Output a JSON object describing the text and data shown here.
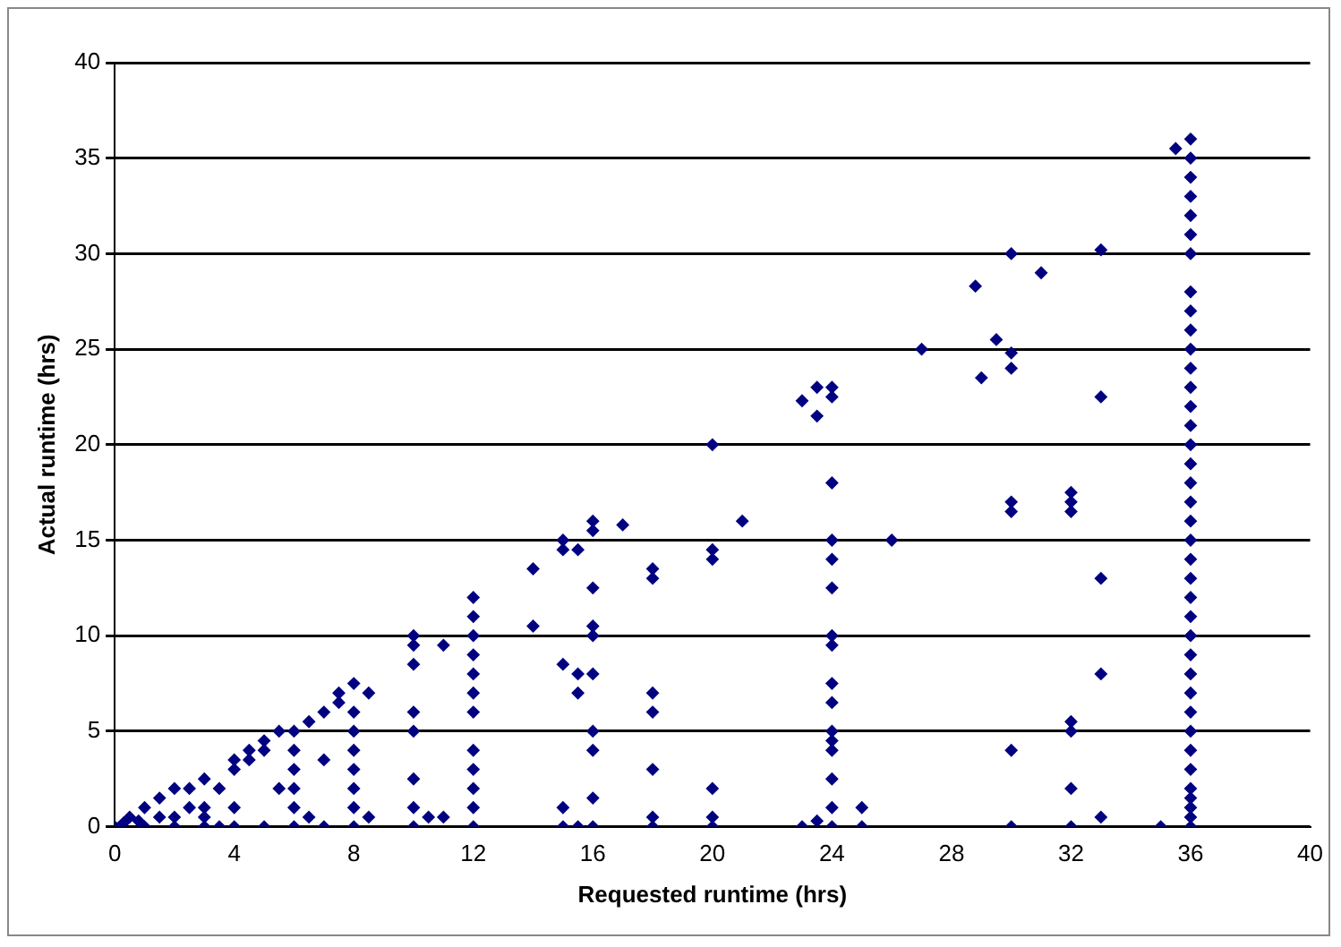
{
  "chart_data": {
    "type": "scatter",
    "xlabel": "Requested runtime (hrs)",
    "ylabel": "Actual runtime (hrs)",
    "xlim": [
      0,
      40
    ],
    "xticks": [
      0,
      4,
      8,
      12,
      16,
      20,
      24,
      28,
      32,
      36,
      40
    ],
    "ylim": [
      0,
      40
    ],
    "yticks": [
      0,
      5,
      10,
      15,
      20,
      25,
      30,
      35,
      40
    ],
    "grid": "y",
    "legend": false,
    "marker": "diamond",
    "series": [
      {
        "color": "#000080",
        "x": [
          0,
          0.3,
          0.5,
          0.8,
          1,
          1,
          1.5,
          1.5,
          2,
          2,
          2,
          2.5,
          2.5,
          3,
          3,
          3,
          3,
          3.5,
          3.5,
          4,
          4,
          4,
          4,
          4.5,
          4.5,
          5,
          5,
          5,
          5.5,
          5.5,
          6,
          6,
          6,
          6,
          6,
          6,
          6.5,
          6.5,
          7,
          7,
          7,
          7.5,
          7.5,
          8,
          8,
          8,
          8,
          8,
          8,
          8,
          8,
          8.5,
          8.5,
          10,
          10,
          10,
          10,
          10,
          10,
          10,
          10,
          10.5,
          11,
          11,
          12,
          12,
          12,
          12,
          12,
          12,
          12,
          12,
          12,
          12,
          12,
          12,
          14,
          14,
          15,
          15,
          15.5,
          15,
          15.5,
          15.5,
          15,
          15,
          15.5,
          16,
          16,
          16,
          16,
          16,
          16,
          16,
          16,
          16,
          16,
          17,
          18,
          18,
          18,
          18,
          18,
          18,
          18,
          20,
          20,
          20,
          20,
          20,
          20,
          21,
          23,
          23.5,
          23.5,
          24,
          24,
          24,
          24,
          24,
          24,
          24,
          24,
          24,
          24,
          24,
          24,
          24,
          24,
          24,
          24,
          23,
          23.5,
          25,
          25,
          26,
          27,
          28.8,
          29,
          29.5,
          30,
          30,
          30,
          31,
          30,
          30,
          30,
          30,
          32,
          32,
          32,
          32,
          32,
          32,
          32,
          33,
          33,
          33,
          33,
          33,
          35,
          35.5,
          36,
          36,
          36,
          36,
          36,
          36,
          36,
          36,
          36,
          36,
          36,
          36,
          36,
          36,
          36,
          36,
          36,
          36,
          36,
          36,
          36,
          36,
          36,
          36,
          36,
          36,
          36,
          36,
          36,
          36,
          36,
          36,
          36,
          36,
          36,
          36,
          36,
          36
        ],
        "values": [
          0,
          0.2,
          0.5,
          0.3,
          1,
          0,
          0.5,
          1.5,
          2,
          0.5,
          0,
          1,
          2,
          2.5,
          1,
          0,
          0.5,
          2,
          0,
          3,
          3.5,
          1,
          0,
          3.5,
          4,
          4.5,
          4,
          0,
          5,
          2,
          5,
          4,
          3,
          2,
          1,
          0,
          5.5,
          0.5,
          6,
          3.5,
          0,
          7,
          6.5,
          7.5,
          6,
          5,
          4,
          3,
          2,
          1,
          0,
          7,
          0.5,
          10,
          9.5,
          8.5,
          6,
          5,
          2.5,
          1,
          0,
          0.5,
          9.5,
          0.5,
          12,
          11,
          10,
          9,
          8,
          7,
          6,
          4,
          3,
          2,
          1,
          0,
          13.5,
          10.5,
          14.5,
          15,
          14.5,
          8.5,
          8,
          7,
          1,
          0,
          0,
          16,
          15.5,
          12.5,
          10.5,
          10,
          8,
          5,
          4,
          1.5,
          0,
          15.8,
          13.5,
          13,
          7,
          6,
          3,
          0.5,
          0,
          20,
          14.5,
          14,
          2,
          0.5,
          0,
          16,
          22.3,
          23,
          21.5,
          23,
          22.5,
          18,
          15,
          14,
          12.5,
          10,
          9.5,
          7.5,
          6.5,
          5,
          4.5,
          4,
          2.5,
          1,
          0,
          0,
          0.3,
          1,
          0,
          15,
          25,
          28.3,
          23.5,
          25.5,
          24.8,
          24,
          30,
          29,
          17,
          16.5,
          4,
          0,
          17.5,
          17,
          16.5,
          5.5,
          5,
          2,
          0,
          30.2,
          22.5,
          13,
          8,
          0.5,
          0,
          35.5,
          36,
          35,
          34,
          33,
          32,
          31,
          30,
          28,
          27,
          26,
          25,
          24,
          23,
          22,
          21,
          20,
          19,
          18,
          17,
          16,
          15,
          14,
          13,
          12,
          11,
          10,
          9,
          8,
          7,
          6,
          5,
          4,
          3,
          2,
          1.5,
          1,
          0.5,
          0
        ]
      }
    ]
  }
}
